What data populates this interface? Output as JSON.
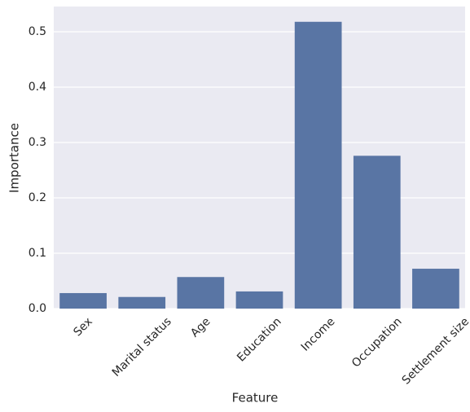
{
  "chart_data": {
    "type": "bar",
    "x_label": "Feature",
    "y_label": "Importance",
    "categories": [
      "Sex",
      "Marital status",
      "Age",
      "Education",
      "Income",
      "Occupation",
      "Settlement size"
    ],
    "values": [
      0.028,
      0.021,
      0.057,
      0.031,
      0.518,
      0.276,
      0.072
    ],
    "color": "#5975a4",
    "background": "#eaeaf2",
    "ylim": [
      0,
      0.5456
    ],
    "yticks": [
      {
        "value": 0,
        "label": "0.0"
      },
      0.1,
      0.2,
      0.3,
      0.4,
      0.5
    ],
    "grid": true
  }
}
